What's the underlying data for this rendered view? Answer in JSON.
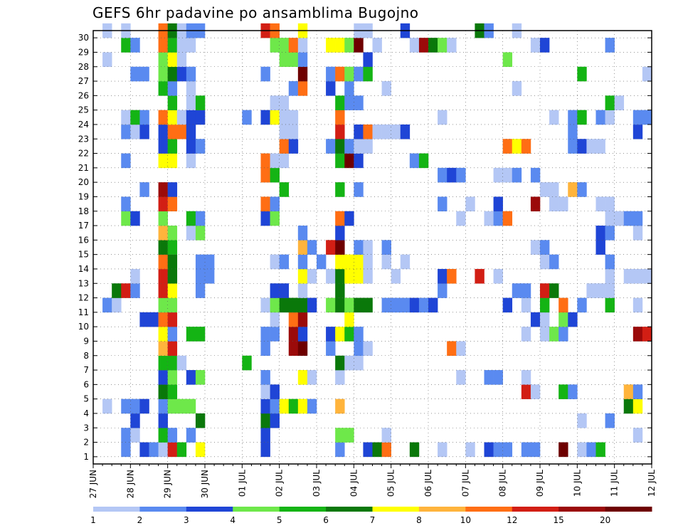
{
  "chart_data": {
    "type": "heatmap",
    "title": "GEFS 6hr padavine po ansamblima Bugojno",
    "xlabel": "",
    "ylabel": "",
    "x_ticks": [
      "27 JUN",
      "28 JUN",
      "29 JUN",
      "30 JUN",
      "01 JUL",
      "02 JUL",
      "03 JUL",
      "04 JUL",
      "05 JUL",
      "06 JUL",
      "07 JUL",
      "08 JUL",
      "09 JUL",
      "10 JUL",
      "11 JUL",
      "12 JUL"
    ],
    "y_ticks": [
      "1",
      "2",
      "3",
      "4",
      "5",
      "6",
      "7",
      "8",
      "9",
      "10",
      "11",
      "12",
      "13",
      "14",
      "15",
      "16",
      "17",
      "18",
      "19",
      "20",
      "21",
      "22",
      "23",
      "24",
      "25",
      "26",
      "27",
      "28",
      "29",
      "30"
    ],
    "xlim": [
      0,
      60
    ],
    "ylim": [
      0,
      30
    ],
    "grid": true,
    "legend_position": "bottom",
    "colorbar": {
      "labels": [
        "1",
        "2",
        "3",
        "4",
        "5",
        "6",
        "7",
        "8",
        "10",
        "12",
        "15",
        "20"
      ],
      "colors": [
        "#b4c7f5",
        "#5a8af0",
        "#1f45d6",
        "#6ee84a",
        "#14b414",
        "#0a780a",
        "#ffff00",
        "#ffb43c",
        "#ff6e14",
        "#d21e14",
        "#9b0a0a",
        "#6e0000"
      ]
    },
    "cells": [
      [
        4,
        1,
        3
      ],
      [
        5,
        1,
        2
      ],
      [
        8,
        1,
        8
      ],
      [
        9,
        1,
        1
      ],
      [
        18,
        1,
        5
      ],
      [
        24,
        1,
        2
      ],
      [
        29,
        1,
        1
      ],
      [
        31,
        1,
        8
      ],
      [
        35,
        1,
        3
      ],
      [
        36,
        1,
        9
      ],
      [
        37,
        1,
        7
      ],
      [
        39,
        1,
        1
      ],
      [
        44,
        1,
        2
      ],
      [
        4,
        2,
        1
      ],
      [
        8,
        1,
        10
      ],
      [
        10,
        1,
        1
      ],
      [
        11,
        1,
        2
      ],
      [
        14,
        1,
        4
      ],
      [
        19,
        1,
        1
      ],
      [
        22,
        1,
        2
      ],
      [
        7,
        0,
        6
      ],
      [
        16,
        0,
        3
      ],
      [
        19,
        0,
        9
      ],
      [
        20,
        0,
        12
      ],
      [
        29,
        0,
        5
      ],
      [
        31,
        0,
        2
      ],
      [
        32,
        0,
        1
      ],
      [
        47,
        0,
        6
      ],
      [
        3,
        1,
        2
      ],
      [
        4,
        1,
        3
      ],
      [
        7,
        1,
        10
      ],
      [
        8,
        1,
        5
      ],
      [
        11,
        1,
        8
      ],
      [
        15,
        1,
        2
      ],
      [
        21,
        1,
        10
      ],
      [
        22,
        1,
        10
      ],
      [
        25,
        1,
        3
      ],
      [
        26,
        1,
        5
      ],
      [
        30,
        1,
        6
      ],
      [
        31,
        1,
        8
      ],
      [
        40,
        1,
        1
      ],
      [
        44,
        1,
        1
      ],
      [
        45,
        1,
        1
      ],
      [
        46,
        1,
        2
      ],
      [
        47,
        1,
        2
      ],
      [
        50,
        1,
        12
      ],
      [
        52,
        1,
        1
      ],
      [
        53,
        1,
        2
      ],
      [
        54,
        1,
        5
      ],
      [
        58,
        1,
        1
      ]
    ]
  }
}
